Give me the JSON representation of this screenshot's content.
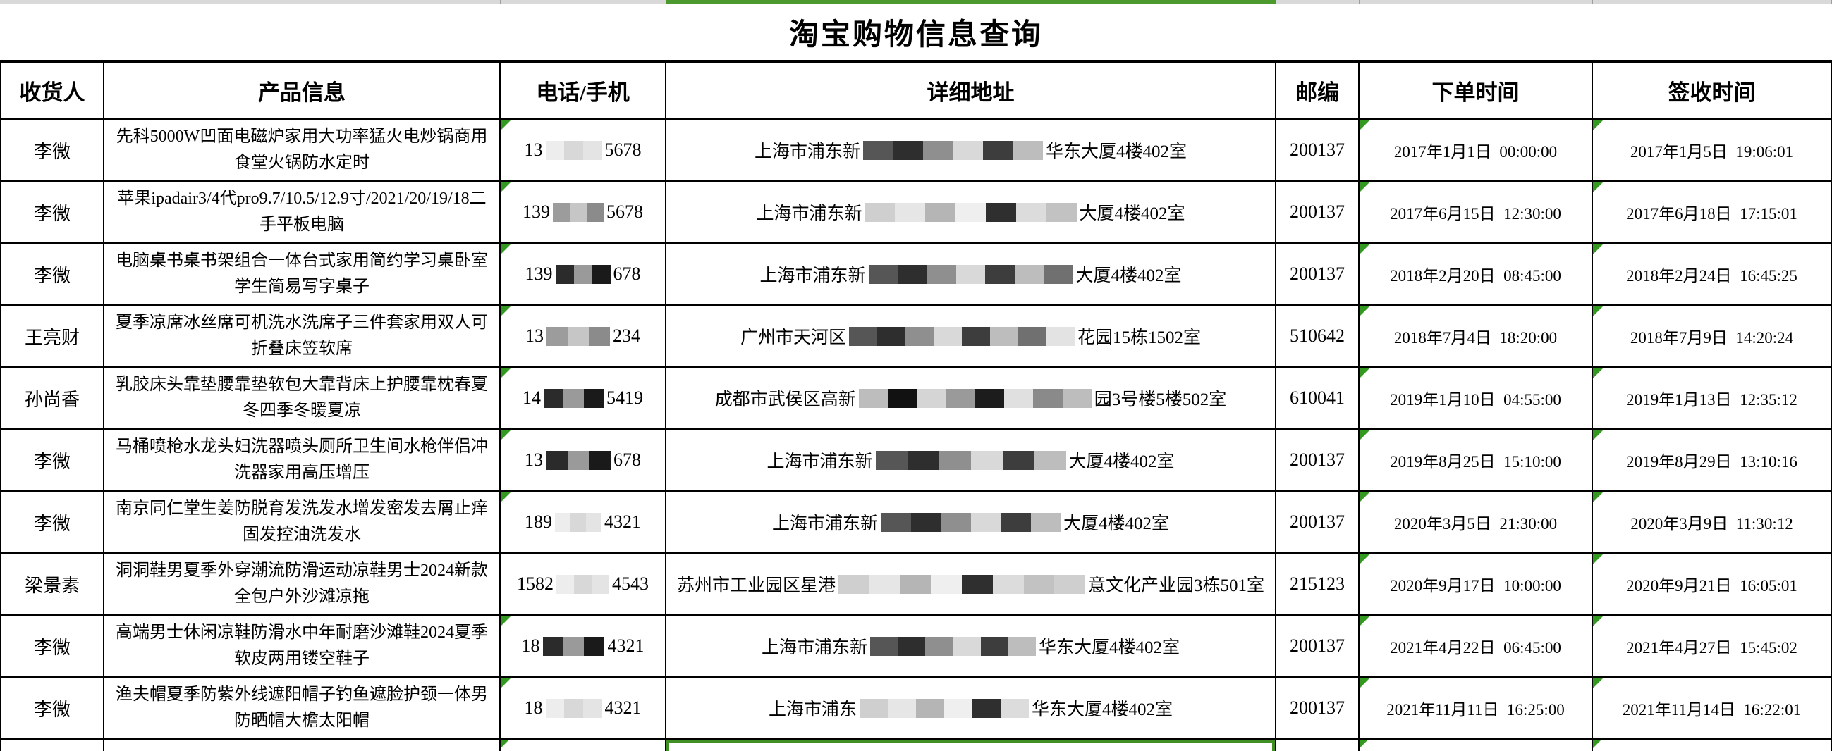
{
  "title": "淘宝购物信息查询",
  "columns": [
    {
      "key": "recipient",
      "label": "收货人"
    },
    {
      "key": "product",
      "label": "产品信息"
    },
    {
      "key": "phone",
      "label": "电话/手机"
    },
    {
      "key": "address",
      "label": "详细地址"
    },
    {
      "key": "zip",
      "label": "邮编"
    },
    {
      "key": "order",
      "label": "下单时间"
    },
    {
      "key": "sign",
      "label": "签收时间"
    }
  ],
  "colors": {
    "accent_green": "#4c9a2e",
    "indicator_green": "#339920",
    "selection_green": "#3f8f24",
    "grid_black": "#000000",
    "strip_gray": "#d9d9d9"
  },
  "rows": [
    {
      "recipient": "李微",
      "product": "先科5000W凹面电磁炉家用大功率猛火电炒锅商用食堂火锅防水定时",
      "phone": {
        "prefix": "13",
        "suffix": "5678",
        "mask_w": 80,
        "variant": "light"
      },
      "address": {
        "prefix": "上海市浦东新",
        "suffix": "华东大厦4楼402室",
        "mask_w": 255,
        "variant": "mixed"
      },
      "zip": "200137",
      "order": "2017年1月1日  00:00:00",
      "sign": "2017年1月5日  19:06:01",
      "indicators": [
        "phone",
        "order",
        "sign"
      ]
    },
    {
      "recipient": "李微",
      "product": "苹果ipadair3/4代pro9.7/10.5/12.9寸/2021/20/19/18二手平板电脑",
      "phone": {
        "prefix": "139",
        "suffix": "5678",
        "mask_w": 72,
        "variant": "gray"
      },
      "address": {
        "prefix": "上海市浦东新",
        "suffix": "大厦4楼402室",
        "mask_w": 300,
        "variant": "lightmix"
      },
      "zip": "200137",
      "order": "2017年6月15日  12:30:00",
      "sign": "2017年6月18日  17:15:01",
      "indicators": [
        "phone",
        "order",
        "sign"
      ]
    },
    {
      "recipient": "李微",
      "product": "电脑桌书桌书架组合一体台式家用简约学习桌卧室学生简易写字桌子",
      "phone": {
        "prefix": "139",
        "suffix": "678",
        "mask_w": 78,
        "variant": "dark"
      },
      "address": {
        "prefix": "上海市浦东新",
        "suffix": "大厦4楼402室",
        "mask_w": 290,
        "variant": "mixed"
      },
      "zip": "200137",
      "order": "2018年2月20日  08:45:00",
      "sign": "2018年2月24日  16:45:25",
      "indicators": [
        "phone",
        "order",
        "sign"
      ]
    },
    {
      "recipient": "王亮财",
      "product": "夏季凉席冰丝席可机洗水洗席子三件套家用双人可折叠床笠软席",
      "phone": {
        "prefix": "13",
        "suffix": "234",
        "mask_w": 90,
        "variant": "gray"
      },
      "address": {
        "prefix": "广州市天河区",
        "suffix": "花园15栋1502室",
        "mask_w": 320,
        "variant": "mixed"
      },
      "zip": "510642",
      "order": "2018年7月4日  18:20:00",
      "sign": "2018年7月9日  14:20:24",
      "indicators": [
        "phone",
        "order",
        "sign"
      ]
    },
    {
      "recipient": "孙尚香",
      "product": "乳胶床头靠垫腰靠垫软包大靠背床上护腰靠枕春夏冬四季冬暖夏凉",
      "phone": {
        "prefix": "14",
        "suffix": "5419",
        "mask_w": 85,
        "variant": "dark"
      },
      "address": {
        "prefix": "成都市武侯区高新",
        "suffix": "园3号楼5楼502室",
        "mask_w": 330,
        "variant": "darkmix"
      },
      "zip": "610041",
      "order": "2019年1月10日  04:55:00",
      "sign": "2019年1月13日  12:35:12",
      "indicators": [
        "phone",
        "order",
        "sign"
      ]
    },
    {
      "recipient": "李微",
      "product": "马桶喷枪水龙头妇洗器喷头厕所卫生间水枪伴侣冲洗器家用高压增压",
      "phone": {
        "prefix": "13",
        "suffix": "678",
        "mask_w": 92,
        "variant": "dark"
      },
      "address": {
        "prefix": "上海市浦东新",
        "suffix": "大厦4楼402室",
        "mask_w": 270,
        "variant": "mixed"
      },
      "zip": "200137",
      "order": "2019年8月25日  15:10:00",
      "sign": "2019年8月29日  13:10:16",
      "indicators": [
        "phone",
        "order",
        "sign"
      ]
    },
    {
      "recipient": "李微",
      "product": "南京同仁堂生姜防脱育发洗发水增发密发去屑止痒固发控油洗发水",
      "phone": {
        "prefix": "189",
        "suffix": "4321",
        "mask_w": 66,
        "variant": "light"
      },
      "address": {
        "prefix": "上海市浦东新",
        "suffix": "大厦4楼402室",
        "mask_w": 255,
        "variant": "mixed"
      },
      "zip": "200137",
      "order": "2020年3月5日  21:30:00",
      "sign": "2020年3月9日  11:30:12",
      "indicators": [
        "phone",
        "order",
        "sign"
      ]
    },
    {
      "recipient": "梁景素",
      "product": "洞洞鞋男夏季外穿潮流防滑运动凉鞋男士2024新款全包户外沙滩凉拖",
      "phone": {
        "prefix": "1582",
        "suffix": "4543",
        "mask_w": 75,
        "variant": "light"
      },
      "address": {
        "prefix": "苏州市工业园区星港",
        "suffix": "意文化产业园3栋501室",
        "mask_w": 350,
        "variant": "lightmix"
      },
      "zip": "215123",
      "order": "2020年9月17日  10:00:00",
      "sign": "2020年9月21日  16:05:01",
      "indicators": [
        "order",
        "sign"
      ]
    },
    {
      "recipient": "李微",
      "product": "高端男士休闲凉鞋防滑水中年耐磨沙滩鞋2024夏季软皮两用镂空鞋子",
      "phone": {
        "prefix": "18",
        "suffix": "4321",
        "mask_w": 88,
        "variant": "dark"
      },
      "address": {
        "prefix": "上海市浦东新",
        "suffix": "华东大厦4楼402室",
        "mask_w": 235,
        "variant": "mixed"
      },
      "zip": "200137",
      "order": "2021年4月22日  06:45:00",
      "sign": "2021年4月27日  15:45:02",
      "indicators": [
        "phone",
        "order",
        "sign"
      ]
    },
    {
      "recipient": "李微",
      "product": "渔夫帽夏季防紫外线遮阳帽子钓鱼遮脸护颈一体男防晒帽大檐太阳帽",
      "phone": {
        "prefix": "18",
        "suffix": "4321",
        "mask_w": 80,
        "variant": "light"
      },
      "address": {
        "prefix": "上海市浦东",
        "suffix": "华东大厦4楼402室",
        "mask_w": 240,
        "variant": "lightmix"
      },
      "zip": "200137",
      "order": "2021年11月11日  16:25:00",
      "sign": "2021年11月14日  16:22:01",
      "indicators": [
        "phone",
        "order",
        "sign"
      ]
    }
  ],
  "bottom_row": {
    "indicators": [
      "phone",
      "order",
      "sign"
    ],
    "selected": "address"
  },
  "strip": {
    "selected_column": "address"
  }
}
